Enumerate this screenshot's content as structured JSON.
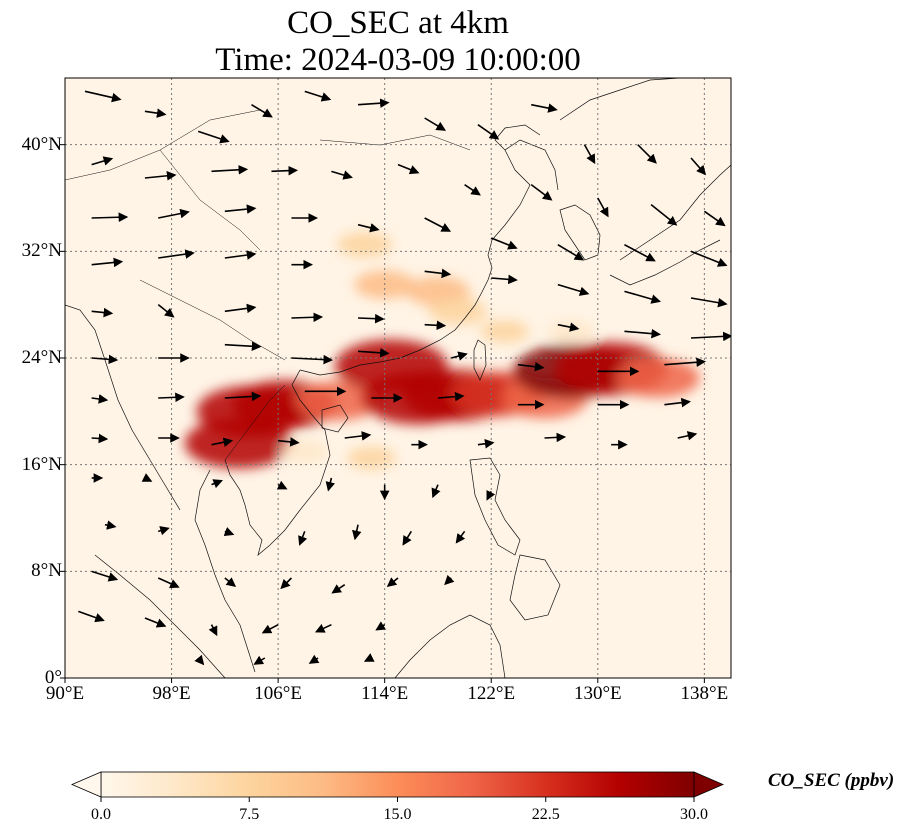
{
  "title_line1": "CO_SEC at 4km",
  "title_line2": "Time: 2024-03-09 10:00:00",
  "map": {
    "lon_range": [
      90,
      140
    ],
    "lat_range": [
      0,
      45
    ],
    "lon_ticks": [
      90,
      98,
      106,
      114,
      122,
      130,
      138
    ],
    "lat_ticks": [
      0,
      8,
      16,
      24,
      32,
      40
    ],
    "lon_tick_labels": [
      "90°E",
      "98°E",
      "106°E",
      "114°E",
      "122°E",
      "130°E",
      "138°E"
    ],
    "lat_tick_labels": [
      "0°",
      "8°N",
      "16°N",
      "24°N",
      "32°N",
      "40°N"
    ],
    "gridlines": true
  },
  "colorbar": {
    "label": "CO_SEC (ppbv)",
    "min": 0.0,
    "max": 30.0,
    "extend": "both",
    "ticks": [
      0.0,
      7.5,
      15.0,
      22.5,
      30.0
    ],
    "tick_labels": [
      "0.0",
      "7.5",
      "15.0",
      "22.5",
      "30.0"
    ],
    "colors": [
      "#fff7ec",
      "#fee8c8",
      "#fdd49e",
      "#fdbb84",
      "#fc8d59",
      "#ef6548",
      "#d7301f",
      "#b30000",
      "#7f0000"
    ]
  },
  "plumes": [
    {
      "lon": 104,
      "lat": 20.0,
      "value": 27
    },
    {
      "lon": 103,
      "lat": 17.6,
      "value": 26
    },
    {
      "lon": 106.5,
      "lat": 20.5,
      "value": 25
    },
    {
      "lon": 110.5,
      "lat": 20.8,
      "value": 18
    },
    {
      "lon": 114.5,
      "lat": 23.4,
      "value": 28
    },
    {
      "lon": 116.5,
      "lat": 21.0,
      "value": 28
    },
    {
      "lon": 119.5,
      "lat": 21.2,
      "value": 27
    },
    {
      "lon": 122.5,
      "lat": 21.3,
      "value": 22
    },
    {
      "lon": 126,
      "lat": 21.0,
      "value": 19
    },
    {
      "lon": 128,
      "lat": 23.0,
      "value": 29
    },
    {
      "lon": 131,
      "lat": 23.2,
      "value": 28
    },
    {
      "lon": 134.5,
      "lat": 22.5,
      "value": 18
    },
    {
      "lon": 114,
      "lat": 29.5,
      "value": 10
    },
    {
      "lon": 118,
      "lat": 29.0,
      "value": 11
    },
    {
      "lon": 119.5,
      "lat": 27.5,
      "value": 9
    },
    {
      "lon": 112.5,
      "lat": 32.5,
      "value": 8
    },
    {
      "lon": 123,
      "lat": 26.0,
      "value": 6
    },
    {
      "lon": 128,
      "lat": 26.0,
      "value": 5
    },
    {
      "lon": 113,
      "lat": 16.5,
      "value": 6
    },
    {
      "lon": 108,
      "lat": 17.0,
      "value": 5
    }
  ],
  "wind_vectors": [
    {
      "lon": 91.5,
      "lat": 44,
      "u": 3.5,
      "v": -0.8
    },
    {
      "lon": 96,
      "lat": 42.5,
      "u": 2,
      "v": -0.3
    },
    {
      "lon": 100,
      "lat": 41,
      "u": 3,
      "v": -1
    },
    {
      "lon": 104,
      "lat": 43,
      "u": 2,
      "v": -1.2
    },
    {
      "lon": 108,
      "lat": 44,
      "u": 2.5,
      "v": -0.8
    },
    {
      "lon": 112,
      "lat": 43,
      "u": 3,
      "v": 0.2
    },
    {
      "lon": 117,
      "lat": 42,
      "u": 2,
      "v": -1.2
    },
    {
      "lon": 121,
      "lat": 41.5,
      "u": 2,
      "v": -1.4
    },
    {
      "lon": 125,
      "lat": 43,
      "u": 2.5,
      "v": -0.5
    },
    {
      "lon": 129,
      "lat": 40,
      "u": 1,
      "v": -1.8
    },
    {
      "lon": 133,
      "lat": 40,
      "u": 1.8,
      "v": -1.8
    },
    {
      "lon": 137,
      "lat": 39,
      "u": 1.4,
      "v": -1.6
    },
    {
      "lon": 92,
      "lat": 38.5,
      "u": 2,
      "v": 0.6
    },
    {
      "lon": 96,
      "lat": 37.5,
      "u": 3,
      "v": 0.3
    },
    {
      "lon": 101,
      "lat": 38,
      "u": 3.5,
      "v": 0.2
    },
    {
      "lon": 105.5,
      "lat": 38,
      "u": 2.5,
      "v": 0.1
    },
    {
      "lon": 110,
      "lat": 38,
      "u": 2,
      "v": -0.6
    },
    {
      "lon": 115,
      "lat": 38.5,
      "u": 2,
      "v": -0.8
    },
    {
      "lon": 120,
      "lat": 37,
      "u": 1.5,
      "v": -1
    },
    {
      "lon": 125,
      "lat": 37,
      "u": 2,
      "v": -1.5
    },
    {
      "lon": 130,
      "lat": 36,
      "u": 1,
      "v": -1.8
    },
    {
      "lon": 134,
      "lat": 35.5,
      "u": 2.5,
      "v": -2
    },
    {
      "lon": 138,
      "lat": 35,
      "u": 2,
      "v": -1.4
    },
    {
      "lon": 92,
      "lat": 34.5,
      "u": 3.5,
      "v": 0.1
    },
    {
      "lon": 97,
      "lat": 34.5,
      "u": 3,
      "v": 0.6
    },
    {
      "lon": 102,
      "lat": 35,
      "u": 3,
      "v": 0.3
    },
    {
      "lon": 107,
      "lat": 34.5,
      "u": 2.5,
      "v": 0
    },
    {
      "lon": 112,
      "lat": 34,
      "u": 2,
      "v": -0.5
    },
    {
      "lon": 117,
      "lat": 34.5,
      "u": 2.5,
      "v": -1.3
    },
    {
      "lon": 122,
      "lat": 33,
      "u": 2.5,
      "v": -1
    },
    {
      "lon": 127,
      "lat": 32.5,
      "u": 2.5,
      "v": -1.5
    },
    {
      "lon": 132,
      "lat": 32.5,
      "u": 3,
      "v": -1.6
    },
    {
      "lon": 137,
      "lat": 32,
      "u": 3.5,
      "v": -1.4
    },
    {
      "lon": 92,
      "lat": 31,
      "u": 3,
      "v": 0.3
    },
    {
      "lon": 97,
      "lat": 31.5,
      "u": 3.5,
      "v": 0.5
    },
    {
      "lon": 102,
      "lat": 31.5,
      "u": 3,
      "v": 0.4
    },
    {
      "lon": 107,
      "lat": 31,
      "u": 2,
      "v": 0
    },
    {
      "lon": 117,
      "lat": 30.5,
      "u": 2.5,
      "v": -0.3
    },
    {
      "lon": 122,
      "lat": 30,
      "u": 2.5,
      "v": -0.2
    },
    {
      "lon": 127,
      "lat": 29.5,
      "u": 3,
      "v": -0.9
    },
    {
      "lon": 132,
      "lat": 29,
      "u": 3.5,
      "v": -1
    },
    {
      "lon": 137,
      "lat": 28.5,
      "u": 3.5,
      "v": -0.6
    },
    {
      "lon": 92,
      "lat": 27.5,
      "u": 2,
      "v": -0.2
    },
    {
      "lon": 97,
      "lat": 28,
      "u": 1.5,
      "v": -1.2
    },
    {
      "lon": 102,
      "lat": 27.5,
      "u": 3,
      "v": 0.4
    },
    {
      "lon": 107,
      "lat": 27,
      "u": 3,
      "v": 0.1
    },
    {
      "lon": 112,
      "lat": 27,
      "u": 2.5,
      "v": -0.1
    },
    {
      "lon": 117,
      "lat": 26.5,
      "u": 2,
      "v": -0.1
    },
    {
      "lon": 127,
      "lat": 26.5,
      "u": 2,
      "v": -0.4
    },
    {
      "lon": 132,
      "lat": 26,
      "u": 3.5,
      "v": -0.3
    },
    {
      "lon": 137,
      "lat": 25.5,
      "u": 4,
      "v": 0.2
    },
    {
      "lon": 92,
      "lat": 24,
      "u": 2.5,
      "v": -0.2
    },
    {
      "lon": 97,
      "lat": 24,
      "u": 3,
      "v": 0
    },
    {
      "lon": 102,
      "lat": 25,
      "u": 3.5,
      "v": -0.2
    },
    {
      "lon": 107,
      "lat": 24,
      "u": 4,
      "v": -0.2
    },
    {
      "lon": 112,
      "lat": 24.5,
      "u": 3,
      "v": -0.2
    },
    {
      "lon": 119,
      "lat": 24,
      "u": 1.5,
      "v": 0.4
    },
    {
      "lon": 124,
      "lat": 23.5,
      "u": 2.5,
      "v": -0.3
    },
    {
      "lon": 130,
      "lat": 23,
      "u": 4,
      "v": 0
    },
    {
      "lon": 135,
      "lat": 23.5,
      "u": 4,
      "v": 0.3
    },
    {
      "lon": 92,
      "lat": 21,
      "u": 1.5,
      "v": -0.2
    },
    {
      "lon": 97,
      "lat": 21,
      "u": 2.5,
      "v": 0.1
    },
    {
      "lon": 102,
      "lat": 21,
      "u": 3.5,
      "v": 0.2
    },
    {
      "lon": 108,
      "lat": 21.5,
      "u": 4,
      "v": 0
    },
    {
      "lon": 113,
      "lat": 21,
      "u": 3,
      "v": 0
    },
    {
      "lon": 118,
      "lat": 21,
      "u": 2.5,
      "v": 0.2
    },
    {
      "lon": 124,
      "lat": 20.5,
      "u": 2.5,
      "v": 0
    },
    {
      "lon": 130,
      "lat": 20.5,
      "u": 3,
      "v": 0
    },
    {
      "lon": 135,
      "lat": 20.5,
      "u": 2.5,
      "v": 0.3
    },
    {
      "lon": 92,
      "lat": 18,
      "u": 1.5,
      "v": -0.1
    },
    {
      "lon": 97,
      "lat": 18,
      "u": 2,
      "v": 0
    },
    {
      "lon": 101,
      "lat": 17.5,
      "u": 2,
      "v": 0.4
    },
    {
      "lon": 106,
      "lat": 17.8,
      "u": 2,
      "v": -0.2
    },
    {
      "lon": 111,
      "lat": 18,
      "u": 2.5,
      "v": 0.3
    },
    {
      "lon": 116,
      "lat": 17.5,
      "u": 1.5,
      "v": 0
    },
    {
      "lon": 121,
      "lat": 17.5,
      "u": 1.5,
      "v": 0.2
    },
    {
      "lon": 126,
      "lat": 18,
      "u": 2,
      "v": 0.1
    },
    {
      "lon": 131,
      "lat": 17.5,
      "u": 1.5,
      "v": 0
    },
    {
      "lon": 136,
      "lat": 18,
      "u": 1.8,
      "v": 0.4
    },
    {
      "lon": 92,
      "lat": 15,
      "u": 1,
      "v": 0
    },
    {
      "lon": 96,
      "lat": 15,
      "u": 0.6,
      "v": -0.3
    },
    {
      "lon": 101,
      "lat": 14.5,
      "u": 1,
      "v": 0.4
    },
    {
      "lon": 106,
      "lat": 14.5,
      "u": 0.8,
      "v": -0.4
    },
    {
      "lon": 110,
      "lat": 15,
      "u": -0.3,
      "v": -1.2
    },
    {
      "lon": 114,
      "lat": 14.5,
      "u": 0,
      "v": -1.4
    },
    {
      "lon": 118,
      "lat": 14.5,
      "u": -0.5,
      "v": -1.2
    },
    {
      "lon": 122,
      "lat": 14,
      "u": -0.4,
      "v": -0.8
    },
    {
      "lon": 93,
      "lat": 11.5,
      "u": 1,
      "v": -0.2
    },
    {
      "lon": 97,
      "lat": 11,
      "u": 1,
      "v": 0.3
    },
    {
      "lon": 102,
      "lat": 11,
      "u": 0.8,
      "v": -0.3
    },
    {
      "lon": 108,
      "lat": 11,
      "u": -0.5,
      "v": -1.3
    },
    {
      "lon": 112,
      "lat": 11.5,
      "u": -0.3,
      "v": -1.4
    },
    {
      "lon": 116,
      "lat": 11,
      "u": -0.8,
      "v": -1.3
    },
    {
      "lon": 120,
      "lat": 11,
      "u": -0.8,
      "v": -1.1
    },
    {
      "lon": 92,
      "lat": 8,
      "u": 2.5,
      "v": -0.8
    },
    {
      "lon": 97,
      "lat": 7.5,
      "u": 2,
      "v": -0.9
    },
    {
      "lon": 102,
      "lat": 7.5,
      "u": 1,
      "v": -0.8
    },
    {
      "lon": 107,
      "lat": 7.5,
      "u": -1,
      "v": -1
    },
    {
      "lon": 111,
      "lat": 7,
      "u": -1.2,
      "v": -0.8
    },
    {
      "lon": 115,
      "lat": 7.5,
      "u": -1,
      "v": -0.8
    },
    {
      "lon": 119,
      "lat": 7.5,
      "u": -0.6,
      "v": -0.6
    },
    {
      "lon": 91,
      "lat": 5,
      "u": 2.5,
      "v": -0.9
    },
    {
      "lon": 96,
      "lat": 4.5,
      "u": 2,
      "v": -0.8
    },
    {
      "lon": 101,
      "lat": 4,
      "u": 0.5,
      "v": -1
    },
    {
      "lon": 106,
      "lat": 4,
      "u": -1.5,
      "v": -0.8
    },
    {
      "lon": 110,
      "lat": 4,
      "u": -1.5,
      "v": -0.7
    },
    {
      "lon": 114,
      "lat": 4,
      "u": -0.8,
      "v": -0.5
    },
    {
      "lon": 100,
      "lat": 1.5,
      "u": 0.5,
      "v": -0.6
    },
    {
      "lon": 105,
      "lat": 1.5,
      "u": -1,
      "v": -0.6
    },
    {
      "lon": 109,
      "lat": 1.5,
      "u": -0.8,
      "v": -0.5
    },
    {
      "lon": 113,
      "lat": 1.5,
      "u": -0.6,
      "v": -0.3
    }
  ]
}
